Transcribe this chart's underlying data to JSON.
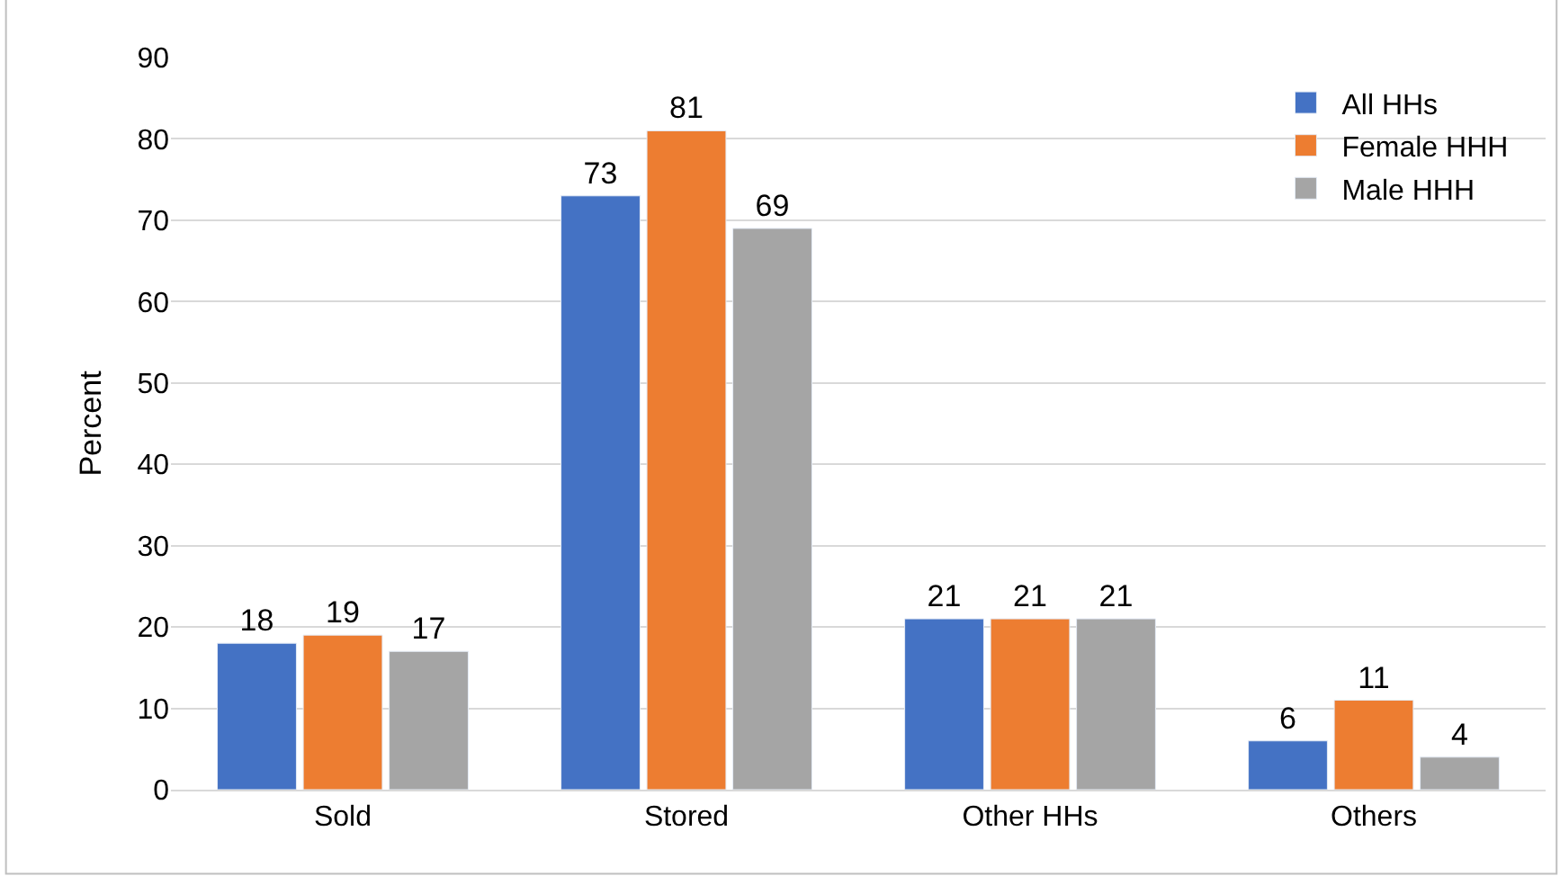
{
  "chart_data": {
    "type": "bar",
    "ylabel": "Percent",
    "categories": [
      "Sold",
      "Stored",
      "Other HHs",
      "Others"
    ],
    "series": [
      {
        "name": "All HHs",
        "color": "#4472c4",
        "values": [
          18,
          73,
          21,
          6
        ]
      },
      {
        "name": "Female HHH",
        "color": "#ed7d31",
        "values": [
          19,
          81,
          21,
          11
        ]
      },
      {
        "name": "Male HHH",
        "color": "#a5a5a5",
        "values": [
          17,
          69,
          21,
          4
        ]
      }
    ],
    "ylim": [
      0,
      90
    ],
    "yticks": [
      0,
      10,
      20,
      30,
      40,
      50,
      60,
      70,
      80,
      90
    ],
    "grid": "y",
    "legend": "top right",
    "data_labels": true
  }
}
